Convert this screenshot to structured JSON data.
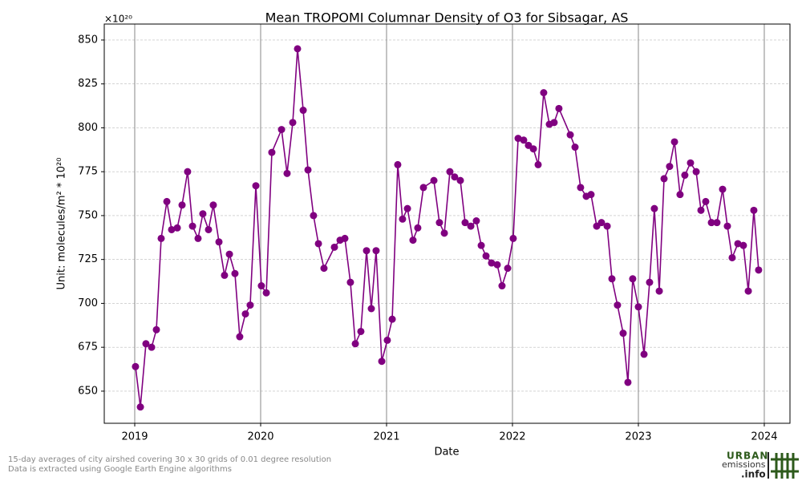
{
  "chart_data": {
    "type": "line",
    "title": "Mean TROPOMI Columnar Density of O3 for Sibsagar, AS",
    "x_label": "Date",
    "y_label": "Unit: molecules/m² * 10²⁰",
    "y_offset_label": "×10²⁰",
    "color": "#800080",
    "grid": true,
    "xlim": [
      2018.758,
      2024.204
    ],
    "xticks": [
      2019,
      2020,
      2021,
      2022,
      2023,
      2024
    ],
    "ylim": [
      631.7,
      859.1
    ],
    "yticks": [
      650,
      675,
      700,
      725,
      750,
      775,
      800,
      825,
      850
    ],
    "x": [
      2019.006,
      2019.045,
      2019.089,
      2019.134,
      2019.172,
      2019.21,
      2019.255,
      2019.293,
      2019.338,
      2019.376,
      2019.42,
      2019.459,
      2019.503,
      2019.541,
      2019.586,
      2019.624,
      2019.669,
      2019.713,
      2019.752,
      2019.796,
      2019.834,
      2019.879,
      2019.917,
      2019.962,
      2020.006,
      2020.045,
      2020.089,
      2020.166,
      2020.21,
      2020.255,
      2020.293,
      2020.338,
      2020.376,
      2020.42,
      2020.459,
      2020.503,
      2020.586,
      2020.631,
      2020.669,
      2020.713,
      2020.752,
      2020.796,
      2020.841,
      2020.879,
      2020.917,
      2020.962,
      2021.006,
      2021.045,
      2021.089,
      2021.127,
      2021.166,
      2021.21,
      2021.248,
      2021.293,
      2021.376,
      2021.42,
      2021.459,
      2021.503,
      2021.541,
      2021.586,
      2021.624,
      2021.669,
      2021.713,
      2021.752,
      2021.79,
      2021.834,
      2021.879,
      2021.917,
      2021.962,
      2022.006,
      2022.045,
      2022.089,
      2022.127,
      2022.166,
      2022.204,
      2022.248,
      2022.293,
      2022.331,
      2022.369,
      2022.459,
      2022.497,
      2022.541,
      2022.586,
      2022.624,
      2022.669,
      2022.707,
      2022.752,
      2022.79,
      2022.834,
      2022.879,
      2022.917,
      2022.955,
      2023.0,
      2023.045,
      2023.089,
      2023.127,
      2023.166,
      2023.204,
      2023.248,
      2023.287,
      2023.331,
      2023.369,
      2023.414,
      2023.459,
      2023.497,
      2023.535,
      2023.58,
      2023.624,
      2023.669,
      2023.707,
      2023.745,
      2023.79,
      2023.834,
      2023.873,
      2023.917,
      2023.955
    ],
    "values": [
      664,
      641,
      677,
      675,
      685,
      737,
      758,
      742,
      743,
      756,
      775,
      744,
      737,
      751,
      742,
      756,
      735,
      716,
      728,
      717,
      681,
      694,
      699,
      767,
      710,
      706,
      786,
      799,
      774,
      803,
      845,
      810,
      776,
      750,
      734,
      720,
      732,
      736,
      737,
      712,
      677,
      684,
      730,
      697,
      730,
      667,
      679,
      691,
      779,
      748,
      754,
      736,
      743,
      766,
      770,
      746,
      740,
      775,
      772,
      770,
      746,
      744,
      747,
      733,
      727,
      723,
      722,
      710,
      720,
      737,
      794,
      793,
      790,
      788,
      779,
      820,
      802,
      803,
      811,
      796,
      789,
      766,
      761,
      762,
      744,
      746,
      744,
      714,
      699,
      683,
      655,
      714,
      698,
      671,
      712,
      754,
      707,
      771,
      778,
      792,
      762,
      773,
      780,
      775,
      753,
      758,
      746,
      746,
      765,
      744,
      726,
      734,
      733,
      707,
      753,
      719
    ]
  },
  "footnote": {
    "line1": "15-day averages of city airshed covering 30 x 30 grids of 0.01 degree resolution",
    "line2": "Data is extracted using Google Earth Engine algorithms"
  },
  "logo": {
    "word1": "URBAN",
    "word2": "emissions",
    "word3": ".info"
  }
}
